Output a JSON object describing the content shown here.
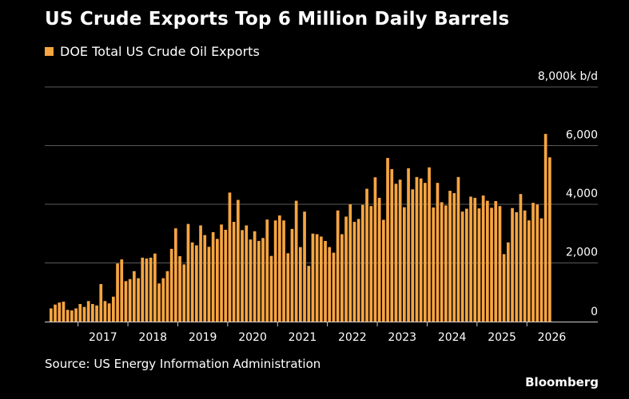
{
  "title": "US Crude Exports Top 6 Million Daily Barrels",
  "source": "Source: US Energy Information Administration",
  "brand": "Bloomberg",
  "colors": {
    "background": "#000000",
    "bar": "#f7a541",
    "grid": "#5a5a5a",
    "text": "#ffffff"
  },
  "chart_data": {
    "type": "bar",
    "legend": [
      "DOE Total US Crude Oil Exports"
    ],
    "legend_position": "top-left",
    "y_unit_label": "8,000k b/d",
    "ylim": [
      0,
      8000
    ],
    "y_ticks": [
      0,
      2000,
      4000,
      6000,
      8000
    ],
    "y_tick_labels": [
      "0",
      "2,000",
      "4,000",
      "6,000",
      "8,000k b/d"
    ],
    "y_axis_side": "right",
    "grid": true,
    "x_tick_labels": [
      "2017",
      "2018",
      "2019",
      "2020",
      "2021",
      "2022",
      "2023",
      "2024",
      "2025",
      "2026"
    ],
    "start_year": 2016,
    "start_month": 6,
    "series": [
      {
        "name": "DOE Total US Crude Oil Exports",
        "values": [
          450,
          580,
          650,
          680,
          400,
          380,
          450,
          600,
          500,
          700,
          600,
          550,
          1280,
          700,
          620,
          850,
          1980,
          2120,
          1380,
          1450,
          1720,
          1480,
          2180,
          2150,
          2180,
          2320,
          1300,
          1480,
          1720,
          2480,
          3180,
          2230,
          1950,
          3330,
          2700,
          2600,
          3280,
          2950,
          2550,
          3050,
          2820,
          3310,
          3130,
          4400,
          3400,
          4150,
          3120,
          3280,
          2800,
          3080,
          2750,
          2850,
          3480,
          2240,
          3450,
          3620,
          3450,
          2330,
          3160,
          4120,
          2540,
          3750,
          1900,
          3000,
          2980,
          2900,
          2750,
          2540,
          2350,
          3790,
          2980,
          3580,
          4000,
          3400,
          3500,
          3980,
          4530,
          3940,
          4920,
          4220,
          3470,
          5580,
          5200,
          4700,
          4840,
          3900,
          5230,
          4510,
          4930,
          4880,
          4730,
          5260,
          3890,
          4730,
          4070,
          3960,
          4460,
          4380,
          4930,
          3750,
          3850,
          4260,
          4220,
          3860,
          4300,
          4120,
          3880,
          4110,
          3940,
          2300,
          2700,
          3870,
          3730,
          4350,
          3790,
          3450,
          4050,
          3990,
          3520,
          6400,
          5600
        ]
      }
    ]
  }
}
